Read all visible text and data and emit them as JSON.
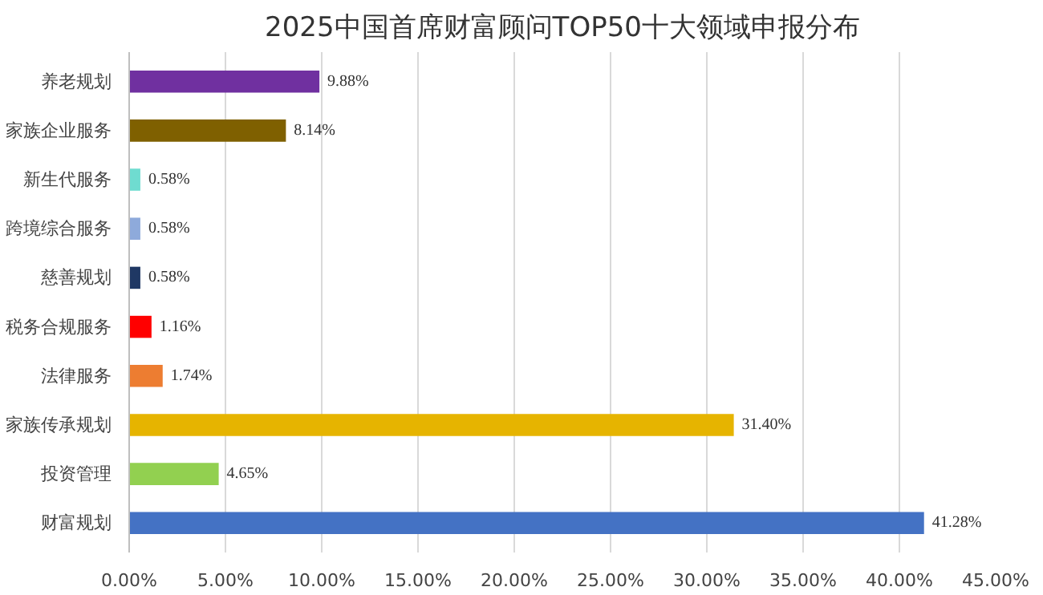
{
  "chart_data": {
    "type": "bar",
    "orientation": "horizontal",
    "title": "2025中国首席财富顾问TOP50十大领域申报分布",
    "categories": [
      "养老规划",
      "家族企业服务",
      "新生代服务",
      "跨境综合服务",
      "慈善规划",
      "税务合规服务",
      "法律服务",
      "家族传承规划",
      "投资管理",
      "财富规划"
    ],
    "values": [
      9.88,
      8.14,
      0.58,
      0.58,
      0.58,
      1.16,
      1.74,
      31.4,
      4.65,
      41.28
    ],
    "value_labels": [
      "9.88%",
      "8.14%",
      "0.58%",
      "0.58%",
      "0.58%",
      "1.16%",
      "1.74%",
      "31.40%",
      "4.65%",
      "41.28%"
    ],
    "colors": [
      "#7030a0",
      "#7f6000",
      "#6fdcd0",
      "#8eaadb",
      "#1f3864",
      "#ff0000",
      "#ed7d31",
      "#e6b400",
      "#92d050",
      "#4472c4"
    ],
    "xlim": [
      0,
      45
    ],
    "xticks": [
      {
        "value": 0,
        "label": "0.00%"
      },
      {
        "value": 5,
        "label": "5.00%"
      },
      {
        "value": 10,
        "label": "10.00%"
      },
      {
        "value": 15,
        "label": "15.00%"
      },
      {
        "value": 20,
        "label": "20.00%"
      },
      {
        "value": 25,
        "label": "25.00%"
      },
      {
        "value": 30,
        "label": "30.00%"
      },
      {
        "value": 35,
        "label": "35.00%"
      },
      {
        "value": 40,
        "label": "40.00%"
      },
      {
        "value": 45,
        "label": "45.00%"
      }
    ],
    "grid": "x"
  }
}
